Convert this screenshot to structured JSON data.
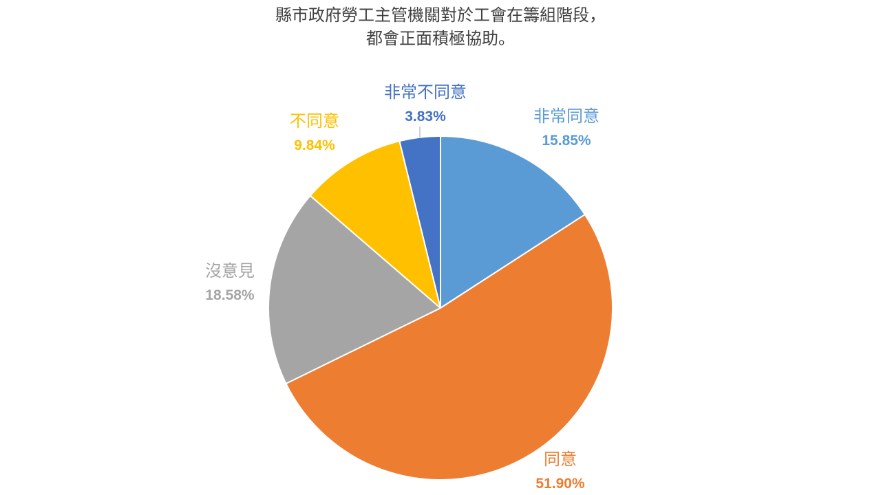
{
  "chart_data": {
    "type": "pie",
    "title_lines": [
      "縣市政府勞工主管機關對於工會在籌組階段，",
      "都會正面積極協助。"
    ],
    "slices": [
      {
        "label": "非常同意",
        "value": 15.85,
        "percent_text": "15.85%",
        "color": "#5B9BD5"
      },
      {
        "label": "同意",
        "value": 51.9,
        "percent_text": "51.90%",
        "color": "#ED7D31"
      },
      {
        "label": "沒意見",
        "value": 18.58,
        "percent_text": "18.58%",
        "color": "#A5A5A5"
      },
      {
        "label": "不同意",
        "value": 9.84,
        "percent_text": "9.84%",
        "color": "#FFC000"
      },
      {
        "label": "非常不同意",
        "value": 3.83,
        "percent_text": "3.83%",
        "color": "#4472C4"
      }
    ],
    "start_angle": "12 o'clock",
    "direction": "clockwise"
  }
}
